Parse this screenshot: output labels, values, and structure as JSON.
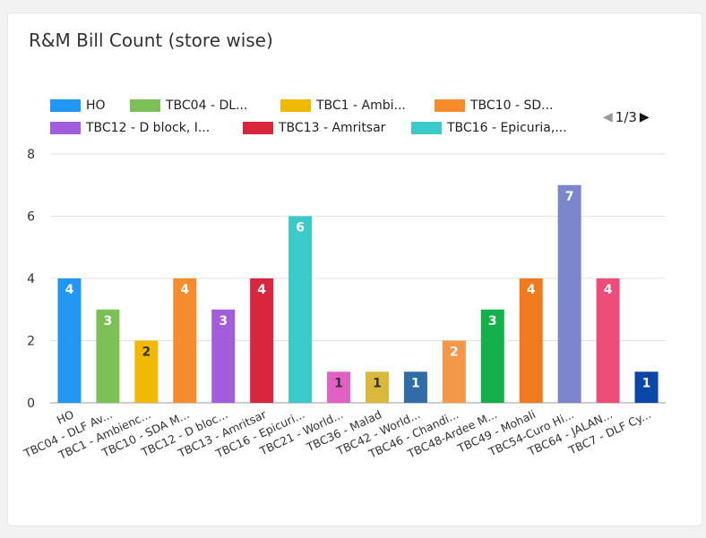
{
  "chart_data": {
    "type": "bar",
    "title": "R&M Bill Count (store wise)",
    "xlabel": "",
    "ylabel": "",
    "ylim": [
      0,
      8
    ],
    "yticks": [
      0,
      2,
      4,
      6,
      8
    ],
    "grid": true,
    "legend_placement": "top",
    "categories": [
      "HO",
      "TBC04 - DLF Av...",
      "TBC1 - Ambienc...",
      "TBC10 - SDA M...",
      "TBC12 - D bloc...",
      "TBC13 - Amritsar",
      "TBC16 - Epicuri...",
      "TBC21 - World...",
      "TBC36 - Malad",
      "TBC42 - World...",
      "TBC46 - Chandi...",
      "TBC48-Ardee M...",
      "TBC49 - Mohali",
      "TBC54-Curo Hi...",
      "TBC64 - JALAN...",
      "TBC7 - DLF Cy..."
    ],
    "values": [
      4,
      3,
      2,
      4,
      3,
      4,
      6,
      1,
      1,
      1,
      2,
      3,
      4,
      7,
      4,
      1
    ],
    "colors": [
      "#2196f3",
      "#7cc158",
      "#f0b800",
      "#f68c2b",
      "#a25ddc",
      "#d7263d",
      "#3cc9c9",
      "#e25fc3",
      "#d9b83c",
      "#2f6ca8",
      "#f29848",
      "#14b14a",
      "#f07a1d",
      "#7986cb",
      "#ee4d79",
      "#0b47a8"
    ],
    "label_colors": [
      "#ffffff",
      "#ffffff",
      "#333333",
      "#ffffff",
      "#ffffff",
      "#ffffff",
      "#ffffff",
      "#333333",
      "#333333",
      "#ffffff",
      "#ffffff",
      "#ffffff",
      "#ffffff",
      "#ffffff",
      "#ffffff",
      "#ffffff"
    ]
  },
  "legend": {
    "items": [
      {
        "label": "HO",
        "color": "#2196f3"
      },
      {
        "label": "TBC04 - DL...",
        "color": "#7cc158"
      },
      {
        "label": "TBC1 - Ambi...",
        "color": "#f0b800"
      },
      {
        "label": "TBC10 - SD...",
        "color": "#f68c2b"
      },
      {
        "label": "TBC12 - D block, I...",
        "color": "#a25ddc"
      },
      {
        "label": "TBC13 - Amritsar",
        "color": "#d7263d"
      },
      {
        "label": "TBC16 - Epicuria,...",
        "color": "#3cc9c9"
      }
    ],
    "page_text": "1/3",
    "prev_icon": "triangle-left-icon",
    "next_icon": "triangle-right-icon"
  }
}
